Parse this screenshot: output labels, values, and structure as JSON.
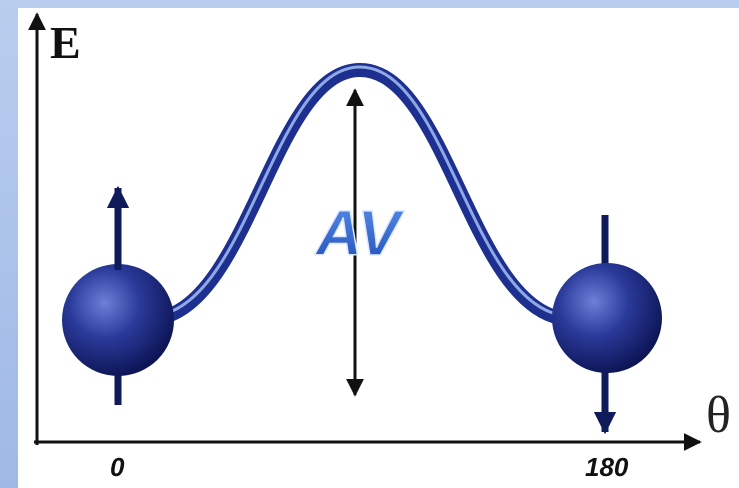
{
  "axes": {
    "y_label": "E",
    "x_label": "θ"
  },
  "barrier_label": "AV",
  "x_positions": {
    "left": "0",
    "right": "180"
  }
}
